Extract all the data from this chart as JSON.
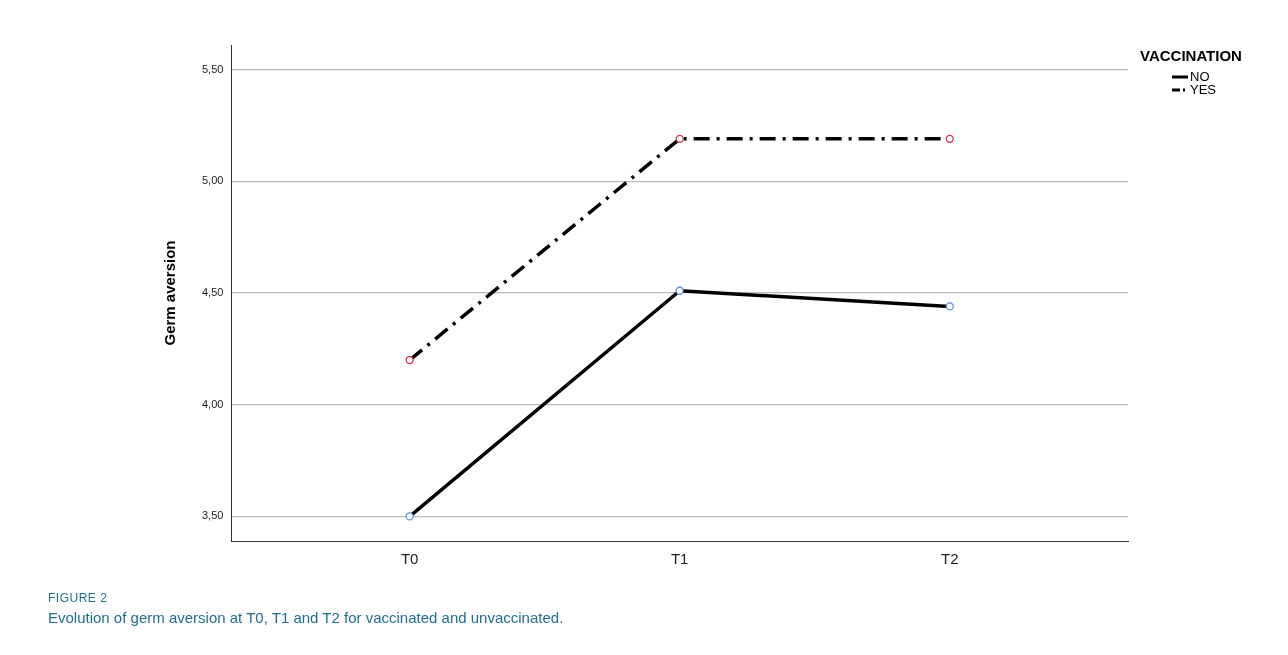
{
  "chart_data": {
    "type": "line",
    "ylabel": "Germ aversion",
    "legend_title": "VACCINATION",
    "categories": [
      "T0",
      "T1",
      "T2"
    ],
    "series": [
      {
        "name": "NO",
        "color": "#000000",
        "colors": [
          "#5b8fd6",
          "#5b8fd6",
          "#5b8fd6"
        ],
        "line_style": "solid",
        "values": [
          3.5,
          4.51,
          4.44
        ]
      },
      {
        "name": "YES",
        "color": "#000000",
        "colors": [
          "#d6304a",
          "#d6304a",
          "#d6304a"
        ],
        "line_style": "dashed",
        "values": [
          4.2,
          5.19,
          5.19
        ]
      }
    ],
    "ylim": [
      3.39,
      5.61
    ],
    "yticks": [
      {
        "value": 3.5,
        "label": "3,50"
      },
      {
        "value": 4,
        "label": "4,00"
      },
      {
        "value": 4.5,
        "label": "4,50"
      },
      {
        "value": 5,
        "label": "5,00"
      },
      {
        "value": 5.5,
        "label": "5,50"
      }
    ],
    "grid": "y",
    "marker": "circle",
    "legend": "top right",
    "annotations": [
      "FIGURE 2",
      "Evolution of germ aversion at T0, T1 and T2 for vaccinated and unvaccinated."
    ]
  }
}
